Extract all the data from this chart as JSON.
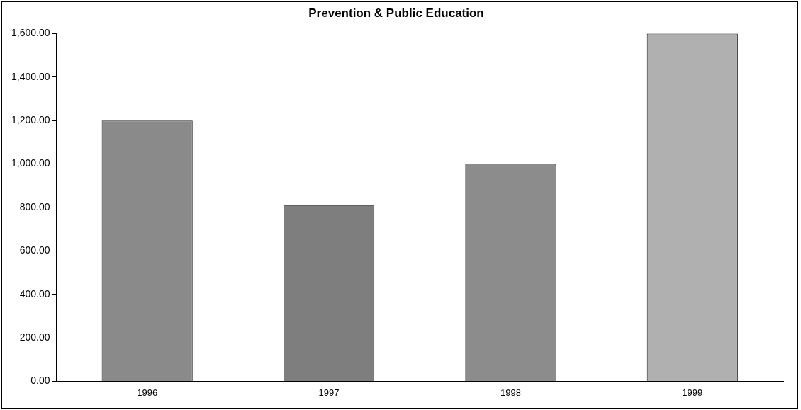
{
  "chart_data": {
    "type": "bar",
    "title": "Prevention & Public Education",
    "categories": [
      "1996",
      "1997",
      "1998",
      "1999"
    ],
    "values": [
      1200,
      810,
      1000,
      1600
    ],
    "colors": [
      "#8a8a8a",
      "#7e7e7e",
      "#8c8c8c",
      "#b0b0b0"
    ],
    "ylim": [
      0,
      1600
    ],
    "yticks": [
      {
        "value": 0,
        "label": "0.00"
      },
      {
        "value": 200,
        "label": "200.00"
      },
      {
        "value": 400,
        "label": "400.00"
      },
      {
        "value": 600,
        "label": "600.00"
      },
      {
        "value": 800,
        "label": "800.00"
      },
      {
        "value": 1000,
        "label": "1,000.00"
      },
      {
        "value": 1200,
        "label": "1,200.00"
      },
      {
        "value": 1400,
        "label": "1,400.00"
      },
      {
        "value": 1600,
        "label": "1,600.00"
      }
    ],
    "grid": false,
    "legend": false
  }
}
